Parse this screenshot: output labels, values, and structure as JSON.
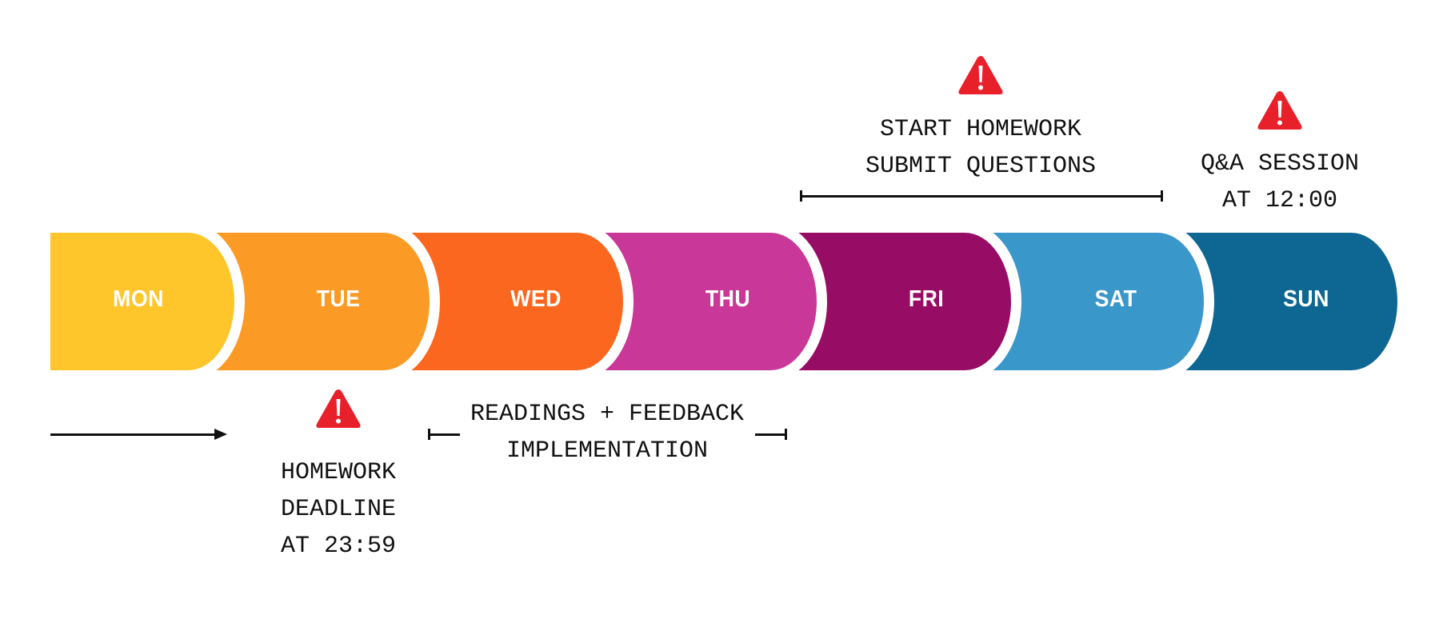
{
  "days": [
    {
      "label": "MON",
      "color": "#FFC62B"
    },
    {
      "label": "TUE",
      "color": "#FC9A26"
    },
    {
      "label": "WED",
      "color": "#FC671F"
    },
    {
      "label": "THU",
      "color": "#C93898"
    },
    {
      "label": "FRI",
      "color": "#970C65"
    },
    {
      "label": "SAT",
      "color": "#3A97C9"
    },
    {
      "label": "SUN",
      "color": "#0E6693"
    }
  ],
  "notes": {
    "tuesday_deadline": {
      "lines": [
        "HOMEWORK",
        "DEADLINE",
        "AT 23:59"
      ],
      "icon": "warning-icon"
    },
    "readings": {
      "lines": [
        "READINGS + FEEDBACK",
        "IMPLEMENTATION"
      ]
    },
    "friday_start": {
      "lines": [
        "START HOMEWORK",
        "SUBMIT QUESTIONS"
      ],
      "icon": "warning-icon"
    },
    "sunday_qa": {
      "lines": [
        "Q&A SESSION",
        "AT 12:00"
      ],
      "icon": "warning-icon"
    }
  },
  "colors": {
    "warning": "#E8202A",
    "line": "#111111"
  }
}
